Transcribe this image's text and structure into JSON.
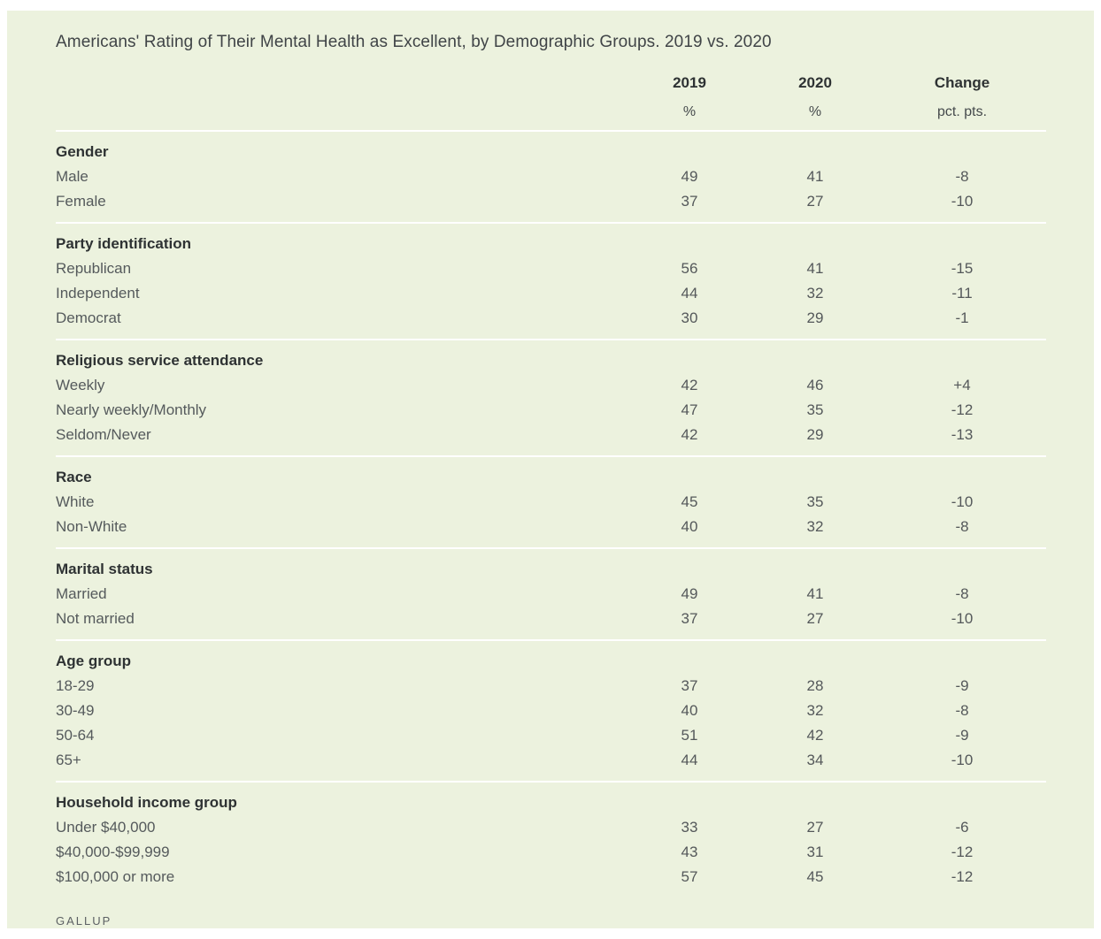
{
  "page": {
    "title": "Americans' Rating of Their Mental Health as Excellent, by Demographic Groups. 2019 vs. 2020",
    "source": "GALLUP"
  },
  "colors": {
    "page_bg": "#ffffff",
    "panel_bg": "#ecf2de",
    "rule": "#ffffff",
    "title_text": "#404447",
    "heading_text": "#2e3233",
    "body_text": "#555a5c"
  },
  "table": {
    "columns": [
      {
        "label": "2019",
        "unit": "%"
      },
      {
        "label": "2020",
        "unit": "%"
      },
      {
        "label": "Change",
        "unit": "pct. pts."
      }
    ],
    "sections": [
      {
        "heading": "Gender",
        "rows": [
          {
            "label": "Male",
            "v2019": "49",
            "v2020": "41",
            "change": "-8"
          },
          {
            "label": "Female",
            "v2019": "37",
            "v2020": "27",
            "change": "-10"
          }
        ]
      },
      {
        "heading": "Party identification",
        "rows": [
          {
            "label": "Republican",
            "v2019": "56",
            "v2020": "41",
            "change": "-15"
          },
          {
            "label": "Independent",
            "v2019": "44",
            "v2020": "32",
            "change": "-11"
          },
          {
            "label": "Democrat",
            "v2019": "30",
            "v2020": "29",
            "change": "-1"
          }
        ]
      },
      {
        "heading": "Religious service attendance",
        "rows": [
          {
            "label": "Weekly",
            "v2019": "42",
            "v2020": "46",
            "change": "+4"
          },
          {
            "label": "Nearly weekly/Monthly",
            "v2019": "47",
            "v2020": "35",
            "change": "-12"
          },
          {
            "label": "Seldom/Never",
            "v2019": "42",
            "v2020": "29",
            "change": "-13"
          }
        ]
      },
      {
        "heading": "Race",
        "rows": [
          {
            "label": "White",
            "v2019": "45",
            "v2020": "35",
            "change": "-10"
          },
          {
            "label": "Non-White",
            "v2019": "40",
            "v2020": "32",
            "change": "-8"
          }
        ]
      },
      {
        "heading": "Marital status",
        "rows": [
          {
            "label": "Married",
            "v2019": "49",
            "v2020": "41",
            "change": "-8"
          },
          {
            "label": "Not married",
            "v2019": "37",
            "v2020": "27",
            "change": "-10"
          }
        ]
      },
      {
        "heading": "Age group",
        "rows": [
          {
            "label": "18-29",
            "v2019": "37",
            "v2020": "28",
            "change": "-9"
          },
          {
            "label": "30-49",
            "v2019": "40",
            "v2020": "32",
            "change": "-8"
          },
          {
            "label": "50-64",
            "v2019": "51",
            "v2020": "42",
            "change": "-9"
          },
          {
            "label": "65+",
            "v2019": "44",
            "v2020": "34",
            "change": "-10"
          }
        ]
      },
      {
        "heading": "Household income group",
        "rows": [
          {
            "label": "Under $40,000",
            "v2019": "33",
            "v2020": "27",
            "change": "-6"
          },
          {
            "label": "$40,000-$99,999",
            "v2019": "43",
            "v2020": "31",
            "change": "-12"
          },
          {
            "label": "$100,000 or more",
            "v2019": "57",
            "v2020": "45",
            "change": "-12"
          }
        ]
      }
    ]
  },
  "chart_data": {
    "type": "table",
    "title": "Americans' Rating of Their Mental Health as Excellent, by Demographic Groups. 2019 vs. 2020",
    "columns": [
      "2019 %",
      "2020 %",
      "Change pct. pts."
    ],
    "groups": [
      {
        "group": "Gender",
        "rows": [
          [
            "Male",
            49,
            41,
            -8
          ],
          [
            "Female",
            37,
            27,
            -10
          ]
        ]
      },
      {
        "group": "Party identification",
        "rows": [
          [
            "Republican",
            56,
            41,
            -15
          ],
          [
            "Independent",
            44,
            32,
            -11
          ],
          [
            "Democrat",
            30,
            29,
            -1
          ]
        ]
      },
      {
        "group": "Religious service attendance",
        "rows": [
          [
            "Weekly",
            42,
            46,
            4
          ],
          [
            "Nearly weekly/Monthly",
            47,
            35,
            -12
          ],
          [
            "Seldom/Never",
            42,
            29,
            -13
          ]
        ]
      },
      {
        "group": "Race",
        "rows": [
          [
            "White",
            45,
            35,
            -10
          ],
          [
            "Non-White",
            40,
            32,
            -8
          ]
        ]
      },
      {
        "group": "Marital status",
        "rows": [
          [
            "Married",
            49,
            41,
            -8
          ],
          [
            "Not married",
            37,
            27,
            -10
          ]
        ]
      },
      {
        "group": "Age group",
        "rows": [
          [
            "18-29",
            37,
            28,
            -9
          ],
          [
            "30-49",
            40,
            32,
            -8
          ],
          [
            "50-64",
            51,
            42,
            -9
          ],
          [
            "65+",
            44,
            34,
            -10
          ]
        ]
      },
      {
        "group": "Household income group",
        "rows": [
          [
            "Under $40,000",
            33,
            27,
            -6
          ],
          [
            "$40,000-$99,999",
            43,
            31,
            -12
          ],
          [
            "$100,000 or more",
            57,
            45,
            -12
          ]
        ]
      }
    ],
    "source": "GALLUP"
  }
}
